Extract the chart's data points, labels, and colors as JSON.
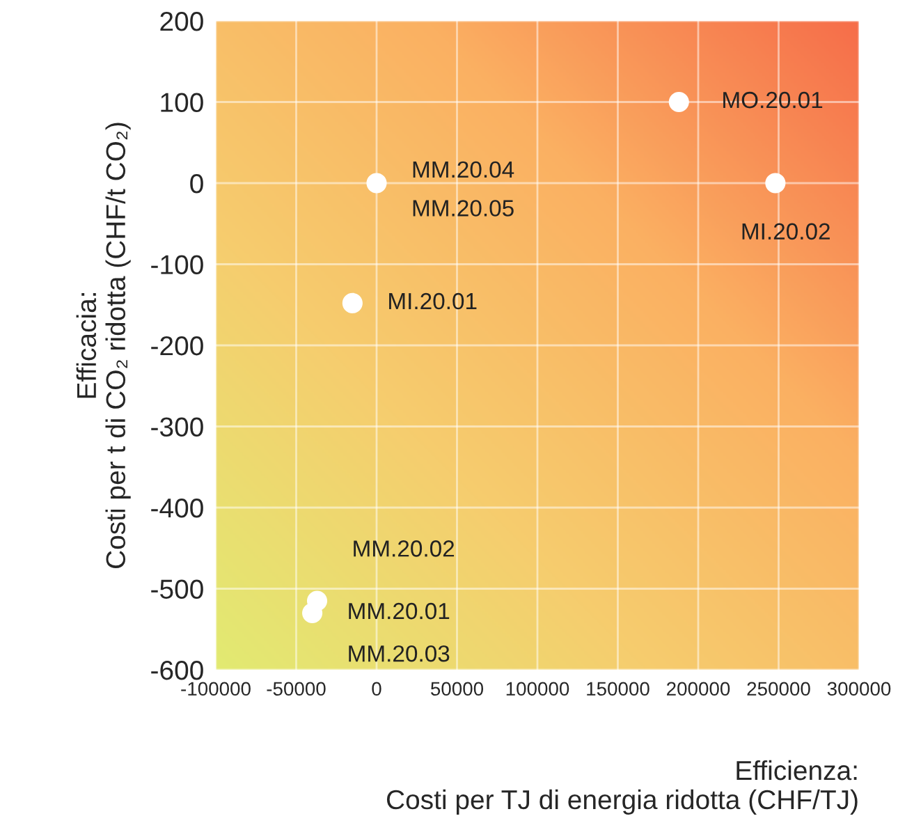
{
  "chart_data": {
    "type": "scatter",
    "xlabel": "Efficienza:\nCosti per TJ di energia ridotta (CHF/TJ)",
    "ylabel": "Efficacia:\nCosti per t di CO₂ ridotta (CHF/t CO₂)",
    "series": [
      {
        "color": "#ffffff",
        "x": [
          188000,
          248000,
          0,
          -15000,
          -37000,
          -40000
        ],
        "values": [
          100,
          0,
          0,
          -148,
          -515,
          -530
        ]
      }
    ],
    "annotations": [
      {
        "text": "MO.20.01",
        "x": 188000,
        "y": 100
      },
      {
        "text": "MI.20.02",
        "x": 248000,
        "y": 0
      },
      {
        "text": "MM.20.04",
        "x": 0,
        "y": 0
      },
      {
        "text": "MM.20.05",
        "x": 0,
        "y": 0
      },
      {
        "text": "MI.20.01",
        "x": -15000,
        "y": -148
      },
      {
        "text": "MM.20.02",
        "x": -37000,
        "y": -515
      },
      {
        "text": "MM.20.01",
        "x": -40000,
        "y": -530
      },
      {
        "text": "MM.20.03",
        "x": -40000,
        "y": -530
      }
    ],
    "xlim": [
      -100000,
      300000
    ],
    "xticks": [
      -100000,
      -50000,
      0,
      50000,
      100000,
      150000,
      200000,
      250000,
      300000
    ],
    "ylim": [
      -600,
      200
    ],
    "yticks": [
      -600,
      -500,
      -400,
      -300,
      -200,
      -100,
      0,
      100,
      200
    ],
    "grid": true,
    "marker": "circle"
  }
}
